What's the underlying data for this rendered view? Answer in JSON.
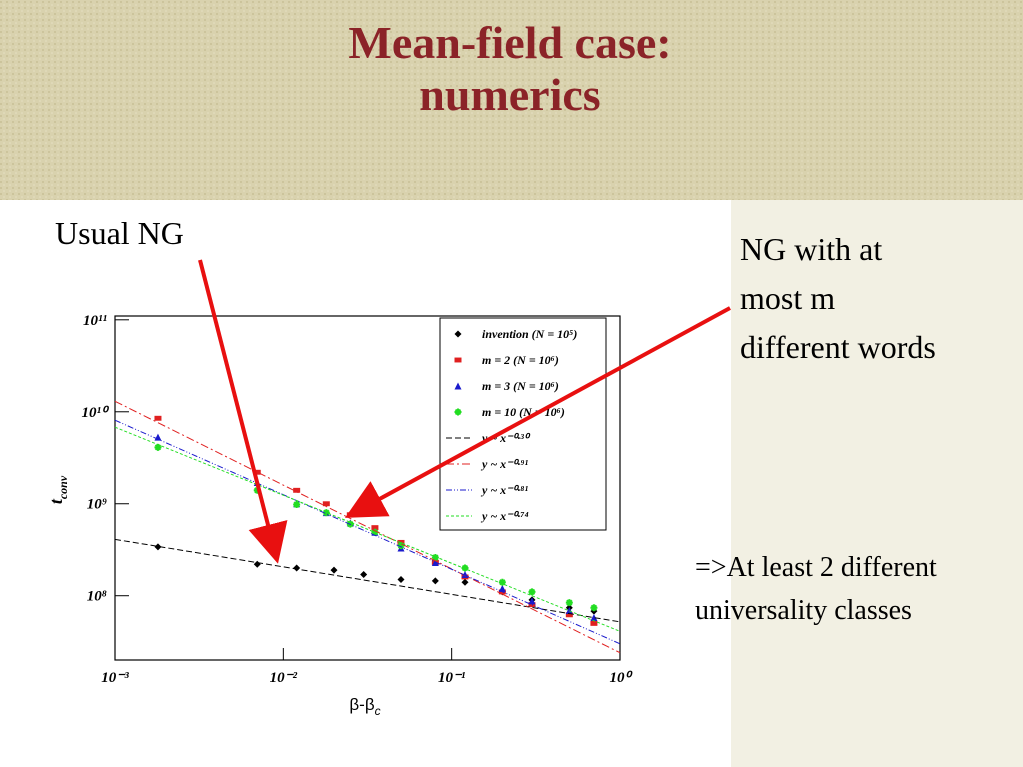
{
  "slide": {
    "title_lines": [
      "Mean-field case:",
      "numerics"
    ],
    "annotations": [
      "Usual NG",
      "NG with at",
      "most m",
      "different words",
      "=>At least 2 different",
      "universality classes"
    ]
  },
  "chart_data": {
    "type": "scatter",
    "log_x": true,
    "log_y": true,
    "xlabel": "β-β",
    "xlabel_sub": "c",
    "ylabel": "t",
    "ylabel_sub": "conv",
    "xlim": [
      0.001,
      1
    ],
    "ylim": [
      20000000,
      110000000000
    ],
    "xticks": [
      {
        "value": 0.001,
        "label": "10⁻³"
      },
      {
        "value": 0.01,
        "label": "10⁻²"
      },
      {
        "value": 0.1,
        "label": "10⁻¹"
      },
      {
        "value": 1,
        "label": "10⁰"
      }
    ],
    "yticks": [
      {
        "value": 100000000,
        "label": "10⁸"
      },
      {
        "value": 1000000000,
        "label": "10⁹"
      },
      {
        "value": 10000000000,
        "label": "10¹⁰"
      },
      {
        "value": 100000000000,
        "label": "10¹¹"
      }
    ],
    "legend": "upper right",
    "series": [
      {
        "name": "invention (N = 10⁵)",
        "style": "points",
        "marker": "diamond",
        "color": "#000000",
        "x": [
          0.0018,
          0.007,
          0.012,
          0.02,
          0.03,
          0.05,
          0.08,
          0.12,
          0.2,
          0.3,
          0.5,
          0.7
        ],
        "values": [
          340000000,
          220000000,
          200000000,
          190000000,
          170000000,
          150000000,
          145000000,
          140000000,
          110000000,
          90000000,
          74000000,
          68000000
        ]
      },
      {
        "name": "m = 2 (N = 10⁶)",
        "style": "points",
        "marker": "square",
        "color": "#e02020",
        "x": [
          0.0018,
          0.007,
          0.012,
          0.018,
          0.025,
          0.035,
          0.05,
          0.08,
          0.12,
          0.2,
          0.3,
          0.5,
          0.7
        ],
        "values": [
          8500000000,
          2200000000,
          1400000000,
          1000000000,
          760000000,
          550000000,
          380000000,
          230000000,
          160000000,
          110000000,
          80000000,
          62000000,
          50000000
        ]
      },
      {
        "name": "m = 3 (N = 10⁶)",
        "style": "points",
        "marker": "triangle",
        "color": "#1a1acc",
        "x": [
          0.0018,
          0.007,
          0.012,
          0.018,
          0.025,
          0.035,
          0.05,
          0.08,
          0.12,
          0.2,
          0.3,
          0.5,
          0.7
        ],
        "values": [
          5300000000,
          1700000000,
          1000000000,
          800000000,
          620000000,
          490000000,
          330000000,
          230000000,
          170000000,
          120000000,
          88000000,
          69000000,
          58000000
        ]
      },
      {
        "name": "m = 10 (N = 10⁶)",
        "style": "points",
        "marker": "star",
        "color": "#22dd22",
        "x": [
          0.0018,
          0.007,
          0.012,
          0.018,
          0.025,
          0.035,
          0.05,
          0.08,
          0.12,
          0.2,
          0.3,
          0.5,
          0.7
        ],
        "values": [
          4100000000,
          1400000000,
          980000000,
          800000000,
          600000000,
          490000000,
          350000000,
          260000000,
          200000000,
          140000000,
          110000000,
          84000000,
          74000000
        ]
      },
      {
        "name": "y ~ x⁻⁰·³⁰",
        "style": "line",
        "dash": "6,3",
        "color": "#000000",
        "x": [
          0.001,
          1
        ],
        "values": [
          410000000,
          52000000
        ]
      },
      {
        "name": "y ~ x⁻⁰·⁹¹",
        "style": "line",
        "dash": "8,3,2,3",
        "color": "#e02020",
        "x": [
          0.001,
          1
        ],
        "values": [
          13000000000,
          24000000
        ]
      },
      {
        "name": "y ~ x⁻⁰·⁸¹",
        "style": "line",
        "dash": "6,2,1,2,1,2",
        "color": "#1a1acc",
        "x": [
          0.001,
          1
        ],
        "values": [
          8100000000,
          30000000
        ]
      },
      {
        "name": "y ~ x⁻⁰·⁷⁴",
        "style": "line",
        "dash": "3,2",
        "color": "#22dd22",
        "x": [
          0.001,
          1
        ],
        "values": [
          6800000000,
          41000000
        ]
      }
    ]
  }
}
